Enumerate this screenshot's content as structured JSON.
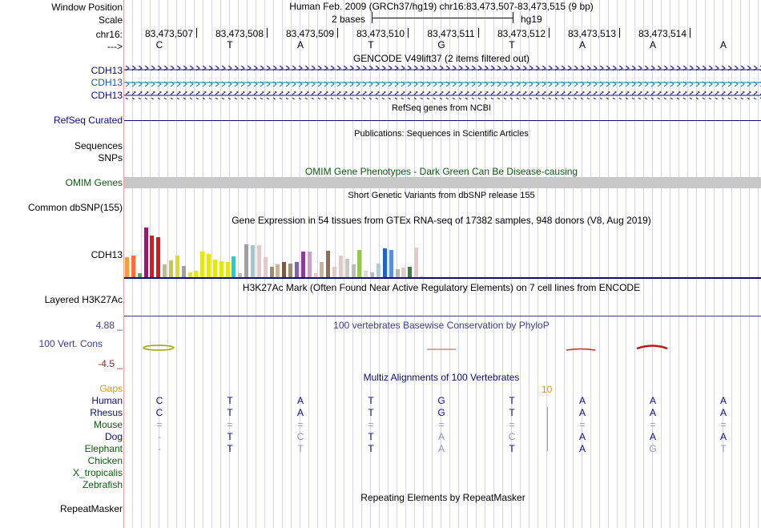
{
  "colors": {
    "navy": "#0c0c78",
    "blue_label": "#1e5aaa",
    "teal": "#0a82a0",
    "green_label": "#0c5a0c",
    "phylop_text": "#3c3c8c",
    "orange": "#e6960a",
    "omim_gray": "#c8c8c8"
  },
  "labels": {
    "window_position": "Window Position",
    "scale": "Scale",
    "chrom": "chr16:",
    "strand_arrow": "--->",
    "cdh13_1": "CDH13",
    "cdh13_2": "CDH13",
    "cdh13_3": "CDH13",
    "refseq_curated": "RefSeq Curated",
    "sequences": "Sequences",
    "snps": "SNPs",
    "omim_genes": "OMIM Genes",
    "common_dbsnp": "Common dbSNP(155)",
    "cdh13_gtex": "CDH13",
    "layered_h3k27ac": "Layered H3K27Ac",
    "cons_max": "4.88 _",
    "vert_cons": "100 Vert. Cons",
    "cons_min": "-4.5 _",
    "gaps": "Gaps",
    "repeatmasker": "RepeatMasker"
  },
  "header": {
    "position_text": "Human Feb. 2009 (GRCh37/hg19)   chr16:83,473,507-83,473,515 (9 bp)",
    "scale_text": "2 bases",
    "assembly": "hg19"
  },
  "coordinates": [
    "83,473,507",
    "83,473,508",
    "83,473,509",
    "83,473,510",
    "83,473,511",
    "83,473,512",
    "83,473,513",
    "83,473,514"
  ],
  "bases": [
    "C",
    "T",
    "A",
    "T",
    "G",
    "T",
    "A",
    "A",
    "A"
  ],
  "titles": {
    "gencode": "GENCODE V49lift37 (2 items filtered out)",
    "refseq": "RefSeq genes from NCBI",
    "publications": "Publications: Sequences in Scientific Articles",
    "omim": "OMIM Gene Phenotypes - Dark Green Can Be Disease-causing",
    "dbsnp": "Short Genetic Variants from dbSNP release 155",
    "gtex": "Gene Expression in 54 tissues from GTEx RNA-seq of 17382 samples, 948 donors (V8, Aug 2019)",
    "h3k27ac": "H3K27Ac Mark (Often Found Near Active Regulatory Elements) on 7 cell lines from ENCODE",
    "phylop": "100 vertebrates Basewise Conservation by PhyloP",
    "multiz": "Multiz Alignments of 100 Vertebrates",
    "repeat": "Repeating Elements by RepeatMasker"
  },
  "gap_count": "10",
  "alignment": [
    {
      "species": "Human",
      "color": "#0c0c78",
      "bases": [
        "C",
        "T",
        "A",
        "T",
        "G",
        "T",
        "A",
        "A",
        "A"
      ],
      "faded": [
        false,
        false,
        false,
        false,
        false,
        false,
        false,
        false,
        false
      ]
    },
    {
      "species": "Rhesus",
      "color": "#0c0c78",
      "bases": [
        "C",
        "T",
        "A",
        "T",
        "G",
        "T",
        "A",
        "A",
        "A"
      ],
      "faded": [
        false,
        false,
        false,
        false,
        false,
        false,
        false,
        false,
        false
      ]
    },
    {
      "species": "Mouse",
      "color": "#0c5a0c",
      "bases": [
        "=",
        "=",
        "=",
        "=",
        "=",
        "=",
        "=",
        "=",
        "="
      ],
      "faded": [
        true,
        true,
        true,
        true,
        true,
        true,
        true,
        true,
        true
      ]
    },
    {
      "species": "Dog",
      "color": "#0c0c78",
      "bases": [
        "-",
        "T",
        "C",
        "T",
        "A",
        "C",
        "A",
        "A",
        "A"
      ],
      "faded": [
        true,
        false,
        true,
        false,
        true,
        true,
        false,
        false,
        false
      ]
    },
    {
      "species": "Elephant",
      "color": "#0c5a0c",
      "bases": [
        "-",
        "T",
        "T",
        "T",
        "A",
        "T",
        "A",
        "G",
        "T"
      ],
      "faded": [
        true,
        false,
        true,
        false,
        true,
        false,
        false,
        true,
        true
      ]
    },
    {
      "species": "Chicken",
      "color": "#0c5a0c",
      "bases": [],
      "faded": []
    },
    {
      "species": "X_tropicalis",
      "color": "#0c5a0c",
      "bases": [],
      "faded": []
    },
    {
      "species": "Zebrafish",
      "color": "#0c5a0c",
      "bases": [],
      "faded": []
    }
  ],
  "gtex_bars": [
    {
      "color": "#ff9a3c",
      "value": 25
    },
    {
      "color": "#ff6a3c",
      "value": 27
    },
    {
      "color": "#62a060",
      "value": 5
    },
    {
      "color": "#8c1e6e",
      "value": 62
    },
    {
      "color": "#e61414",
      "value": 52
    },
    {
      "color": "#e61414",
      "value": 50
    },
    {
      "color": "#bcbc8c",
      "value": 16
    },
    {
      "color": "#c8c850",
      "value": 21
    },
    {
      "color": "#dcdc28",
      "value": 27
    },
    {
      "color": "#a0a0a0",
      "value": 14
    },
    {
      "color": "#e6e614",
      "value": 6
    },
    {
      "color": "#e6e614",
      "value": 8
    },
    {
      "color": "#e6e614",
      "value": 32
    },
    {
      "color": "#e6e614",
      "value": 29
    },
    {
      "color": "#e6e614",
      "value": 22
    },
    {
      "color": "#e6e614",
      "value": 20
    },
    {
      "color": "#e6e614",
      "value": 19
    },
    {
      "color": "#14d2d2",
      "value": 26
    },
    {
      "color": "#bcbcbc",
      "value": 5
    },
    {
      "color": "#a0a0a0",
      "value": 41
    },
    {
      "color": "#a0c8d2",
      "value": 40
    },
    {
      "color": "#e6c8c8",
      "value": 40
    },
    {
      "color": "#e6c8c8",
      "value": 25
    },
    {
      "color": "#a08c6e",
      "value": 13
    },
    {
      "color": "#c8b496",
      "value": 16
    },
    {
      "color": "#7a5a46",
      "value": 19
    },
    {
      "color": "#a08c6e",
      "value": 17
    },
    {
      "color": "#8264aa",
      "value": 19
    },
    {
      "color": "#8c3c96",
      "value": 32
    },
    {
      "color": "#c8a0c8",
      "value": 32
    },
    {
      "color": "#e6c8c8",
      "value": 5
    },
    {
      "color": "#c8b496",
      "value": 19
    },
    {
      "color": "#8c6e50",
      "value": 33
    },
    {
      "color": "#e6c8c8",
      "value": 13
    },
    {
      "color": "#e6c8c8",
      "value": 27
    },
    {
      "color": "#c8c8c8",
      "value": 23
    },
    {
      "color": "#bcbcbc",
      "value": 16
    },
    {
      "color": "#96c850",
      "value": 34
    },
    {
      "color": "#dcdcdc",
      "value": 8
    },
    {
      "color": "#bcbcbc",
      "value": 6
    },
    {
      "color": "#b4c8dc",
      "value": 17
    },
    {
      "color": "#1e64c8",
      "value": 36
    },
    {
      "color": "#5a8cdc",
      "value": 34
    },
    {
      "color": "#b4b4b4",
      "value": 10
    },
    {
      "color": "#e6c8c8",
      "value": 12
    },
    {
      "color": "#3c823c",
      "value": 13
    },
    {
      "color": "#e6c8c8",
      "value": 37
    },
    {
      "color": "#f2d2d2",
      "value": 2
    }
  ]
}
